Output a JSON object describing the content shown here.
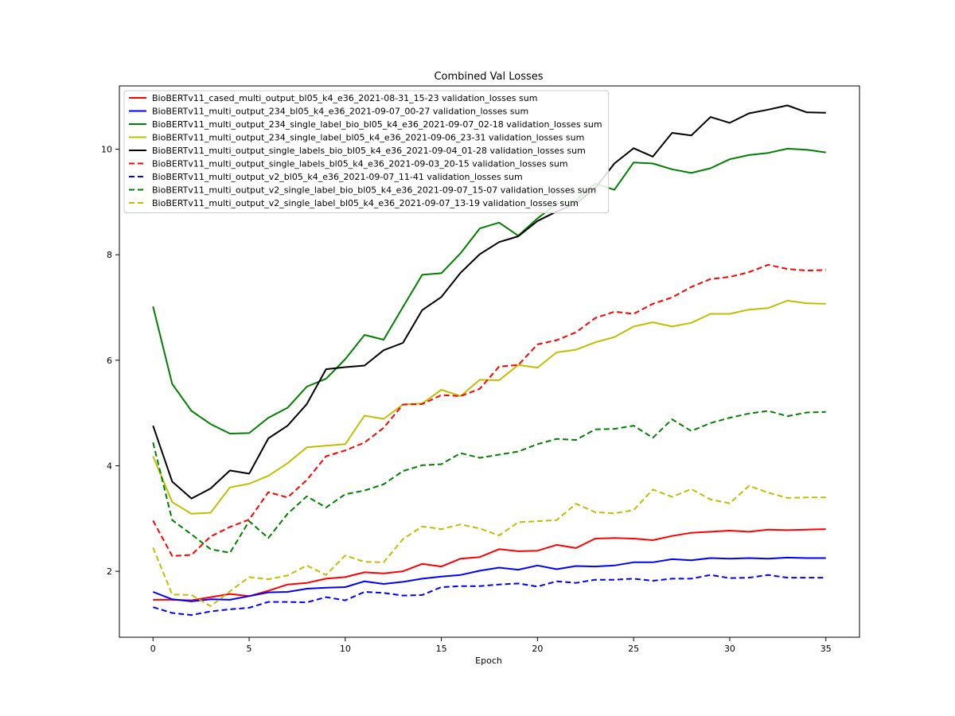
{
  "chart_data": {
    "type": "line",
    "title": "Combined Val Losses",
    "xlabel": "Epoch",
    "ylabel": "",
    "xlim": [
      -1.75,
      36.75
    ],
    "ylim": [
      0.75,
      11.2
    ],
    "xticks": [
      0,
      5,
      10,
      15,
      20,
      25,
      30,
      35
    ],
    "yticks": [
      2,
      4,
      6,
      8,
      10
    ],
    "grid": false,
    "legend_position": "top-left",
    "x": [
      0,
      1,
      2,
      3,
      4,
      5,
      6,
      7,
      8,
      9,
      10,
      11,
      12,
      13,
      14,
      15,
      16,
      17,
      18,
      19,
      20,
      21,
      22,
      23,
      24,
      25,
      26,
      27,
      28,
      29,
      30,
      31,
      32,
      33,
      34,
      35
    ],
    "series": [
      {
        "name": "BioBERTv11_cased_multi_output_bl05_k4_e36_2021-08-31_15-23 validation_losses sum",
        "color": "#ff0000",
        "style": "solid",
        "values": [
          1.46,
          1.46,
          1.45,
          1.51,
          1.57,
          1.53,
          1.63,
          1.75,
          1.78,
          1.86,
          1.89,
          1.98,
          1.96,
          2.0,
          2.14,
          2.09,
          2.24,
          2.27,
          2.42,
          2.38,
          2.39,
          2.5,
          2.44,
          2.62,
          2.63,
          2.62,
          2.59,
          2.67,
          2.73,
          2.75,
          2.77,
          2.75,
          2.79,
          2.78,
          2.79,
          2.8
        ]
      },
      {
        "name": "BioBERTv11_multi_output_234_bl05_k4_e36_2021-09-07_00-27 validation_losses sum",
        "color": "#0000ff",
        "style": "solid",
        "values": [
          1.61,
          1.47,
          1.43,
          1.47,
          1.46,
          1.53,
          1.6,
          1.61,
          1.67,
          1.69,
          1.7,
          1.81,
          1.76,
          1.8,
          1.86,
          1.9,
          1.93,
          2.01,
          2.07,
          2.03,
          2.11,
          2.04,
          2.1,
          2.09,
          2.11,
          2.17,
          2.17,
          2.23,
          2.21,
          2.25,
          2.24,
          2.25,
          2.24,
          2.26,
          2.25,
          2.25
        ]
      },
      {
        "name": "BioBERTv11_multi_output_234_single_label_bio_bl05_k4_e36_2021-09-07_02-18 validation_losses sum",
        "color": "#008000",
        "style": "solid",
        "values": [
          7.02,
          5.55,
          5.04,
          4.79,
          4.61,
          4.62,
          4.91,
          5.1,
          5.5,
          5.65,
          6.02,
          6.48,
          6.39,
          7.01,
          7.62,
          7.65,
          8.03,
          8.5,
          8.61,
          8.36,
          8.69,
          8.97,
          9.03,
          9.35,
          9.23,
          9.75,
          9.73,
          9.62,
          9.55,
          9.64,
          9.81,
          9.89,
          9.93,
          10.01,
          9.99,
          9.94
        ]
      },
      {
        "name": "BioBERTv11_multi_output_234_single_label_bl05_k4_e36_2021-09-06_23-31 validation_losses sum",
        "color": "#bfbf00",
        "style": "solid",
        "values": [
          4.18,
          3.31,
          3.09,
          3.11,
          3.59,
          3.66,
          3.81,
          4.05,
          4.35,
          4.38,
          4.41,
          4.95,
          4.89,
          5.16,
          5.18,
          5.44,
          5.32,
          5.63,
          5.62,
          5.91,
          5.86,
          6.15,
          6.2,
          6.34,
          6.44,
          6.64,
          6.72,
          6.64,
          6.71,
          6.88,
          6.88,
          6.96,
          6.99,
          7.13,
          7.08,
          7.07
        ]
      },
      {
        "name": "BioBERTv11_multi_output_single_labels_bio_bl05_k4_e36_2021-09-04_01-28 validation_losses sum",
        "color": "#000000",
        "style": "solid",
        "values": [
          4.76,
          3.7,
          3.38,
          3.57,
          3.91,
          3.85,
          4.52,
          4.76,
          5.17,
          5.83,
          5.87,
          5.9,
          6.19,
          6.33,
          6.95,
          7.2,
          7.66,
          8.01,
          8.24,
          8.35,
          8.64,
          8.82,
          8.97,
          9.26,
          9.73,
          10.02,
          9.86,
          10.31,
          10.26,
          10.61,
          10.5,
          10.68,
          10.75,
          10.83,
          10.7,
          10.69
        ]
      },
      {
        "name": "BioBERTv11_multi_output_single_labels_bl05_k4_e36_2021-09-03_20-15 validation_losses sum",
        "color": "#ff0000",
        "style": "dashed",
        "values": [
          2.96,
          2.29,
          2.31,
          2.66,
          2.84,
          2.98,
          3.5,
          3.4,
          3.73,
          4.18,
          4.29,
          4.44,
          4.72,
          5.16,
          5.17,
          5.34,
          5.32,
          5.46,
          5.88,
          5.91,
          6.3,
          6.38,
          6.53,
          6.8,
          6.92,
          6.88,
          7.07,
          7.19,
          7.39,
          7.54,
          7.58,
          7.67,
          7.81,
          7.73,
          7.7,
          7.71
        ]
      },
      {
        "name": "BioBERTv11_multi_output_v2_bl05_k4_e36_2021-09-07_11-41 validation_losses sum",
        "color": "#0000ff",
        "style": "dashed",
        "values": [
          1.32,
          1.21,
          1.17,
          1.24,
          1.28,
          1.31,
          1.42,
          1.42,
          1.41,
          1.51,
          1.45,
          1.61,
          1.59,
          1.54,
          1.55,
          1.7,
          1.72,
          1.72,
          1.75,
          1.77,
          1.71,
          1.81,
          1.78,
          1.84,
          1.84,
          1.86,
          1.82,
          1.86,
          1.86,
          1.93,
          1.87,
          1.88,
          1.93,
          1.88,
          1.88,
          1.88
        ]
      },
      {
        "name": "BioBERTv11_multi_output_v2_single_label_bio_bl05_k4_e36_2021-09-07_15-07 validation_losses sum",
        "color": "#008000",
        "style": "dashed",
        "values": [
          4.44,
          2.97,
          2.7,
          2.42,
          2.35,
          2.95,
          2.63,
          3.09,
          3.42,
          3.21,
          3.46,
          3.53,
          3.65,
          3.9,
          4.01,
          4.03,
          4.24,
          4.15,
          4.21,
          4.27,
          4.41,
          4.51,
          4.49,
          4.69,
          4.7,
          4.76,
          4.53,
          4.88,
          4.66,
          4.81,
          4.91,
          4.99,
          5.04,
          4.94,
          5.01,
          5.02
        ]
      },
      {
        "name": "BioBERTv11_multi_output_v2_single_label_bl05_k4_e36_2021-09-07_13-19 validation_losses sum",
        "color": "#bfbf00",
        "style": "dashed",
        "values": [
          2.45,
          1.56,
          1.55,
          1.34,
          1.62,
          1.89,
          1.85,
          1.92,
          2.11,
          1.93,
          2.3,
          2.18,
          2.17,
          2.61,
          2.85,
          2.8,
          2.89,
          2.81,
          2.68,
          2.93,
          2.95,
          2.97,
          3.28,
          3.12,
          3.1,
          3.16,
          3.55,
          3.41,
          3.56,
          3.36,
          3.29,
          3.62,
          3.49,
          3.39,
          3.4,
          3.4
        ]
      }
    ]
  }
}
